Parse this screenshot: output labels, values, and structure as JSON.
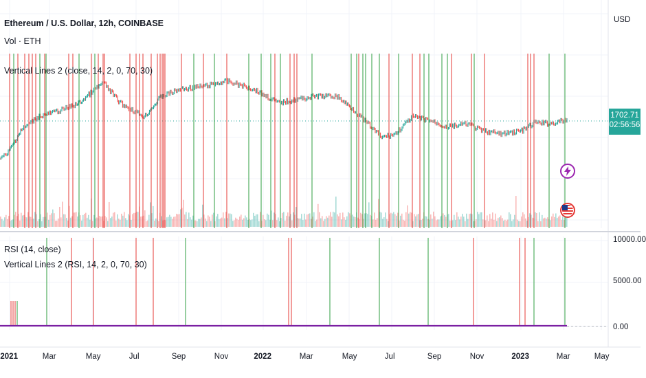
{
  "header": {
    "title": "Ethereum / U.S. Dollar, 12h, COINBASE",
    "currency": "USD",
    "indicators": [
      "Vol · ETH",
      "Vertical Lines 2 (close, 14, 2, 0, 70, 30)"
    ]
  },
  "price_tag": {
    "price": "1702.71",
    "countdown": "02:56:56",
    "color": "#26a69a"
  },
  "lower_pane": {
    "indicators": [
      "RSI (14, close)",
      "Vertical Lines 2 (RSI, 14, 2, 0, 70, 30)"
    ],
    "scale_labels": [
      "10000.00",
      "5000.00",
      "0.00"
    ]
  },
  "time_axis": {
    "labels": [
      {
        "text": "2021",
        "bold": true
      },
      {
        "text": "Mar",
        "bold": false
      },
      {
        "text": "May",
        "bold": false
      },
      {
        "text": "Jul",
        "bold": false
      },
      {
        "text": "Sep",
        "bold": false
      },
      {
        "text": "Nov",
        "bold": false
      },
      {
        "text": "2022",
        "bold": true
      },
      {
        "text": "Mar",
        "bold": false
      },
      {
        "text": "May",
        "bold": false
      },
      {
        "text": "Jul",
        "bold": false
      },
      {
        "text": "Sep",
        "bold": false
      },
      {
        "text": "Nov",
        "bold": false
      },
      {
        "text": "2023",
        "bold": true
      },
      {
        "text": "Mar",
        "bold": false
      },
      {
        "text": "May",
        "bold": false
      }
    ]
  },
  "badges": [
    {
      "name": "lightning-icon",
      "color": "#9c27b0"
    },
    {
      "name": "us-flag-icon",
      "color": "#e53935"
    }
  ],
  "colors": {
    "red_line": "#e53935",
    "green_line": "#2e9e3f",
    "rsi": "#7b1fa2",
    "price_up": "#26a69a",
    "price_down": "#ef5350"
  }
}
